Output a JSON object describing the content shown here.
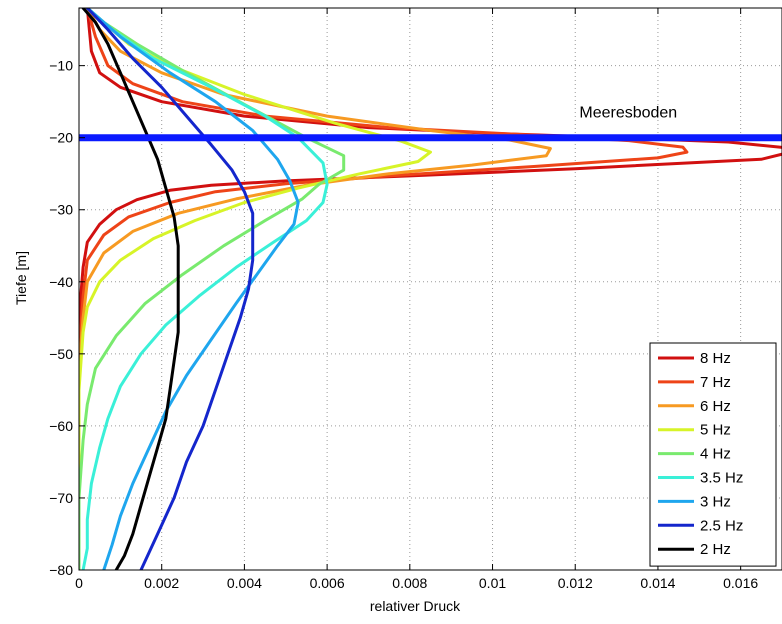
{
  "chart_data": {
    "type": "line",
    "title": "",
    "xlabel": "relativer Druck",
    "ylabel": "Tiefe [m]",
    "xlim": [
      0,
      0.017
    ],
    "ylim": [
      -80,
      -2
    ],
    "grid": true,
    "legend_position": "bottom-right",
    "x_ticks": [
      {
        "value": 0,
        "label": "0"
      },
      {
        "value": 0.002,
        "label": "0.002"
      },
      {
        "value": 0.004,
        "label": "0.004"
      },
      {
        "value": 0.006,
        "label": "0.006"
      },
      {
        "value": 0.008,
        "label": "0.008"
      },
      {
        "value": 0.01,
        "label": "0.01"
      },
      {
        "value": 0.012,
        "label": "0.012"
      },
      {
        "value": 0.014,
        "label": "0.014"
      },
      {
        "value": 0.016,
        "label": "0.016"
      }
    ],
    "y_ticks": [
      {
        "value": -10,
        "label": "−10"
      },
      {
        "value": -20,
        "label": "−20"
      },
      {
        "value": -30,
        "label": "−30"
      },
      {
        "value": -40,
        "label": "−40"
      },
      {
        "value": -50,
        "label": "−50"
      },
      {
        "value": -60,
        "label": "−60"
      },
      {
        "value": -70,
        "label": "−70"
      },
      {
        "value": -80,
        "label": "−80"
      }
    ],
    "annotations": [
      {
        "type": "hline",
        "y": -20,
        "color": "#0a1aff",
        "text": "Meeresboden",
        "text_x": 0.0121,
        "text_y": -17.2
      }
    ],
    "series": [
      {
        "name": "8 Hz",
        "color": "#d11010",
        "points": [
          [
            0.0002,
            -2
          ],
          [
            0.0003,
            -8
          ],
          [
            0.0005,
            -11
          ],
          [
            0.001,
            -13
          ],
          [
            0.002,
            -15
          ],
          [
            0.004,
            -17
          ],
          [
            0.007,
            -18.6
          ],
          [
            0.01,
            -19.4
          ],
          [
            0.013,
            -20
          ],
          [
            0.0157,
            -20.6
          ],
          [
            0.0171,
            -21.4
          ],
          [
            0.0172,
            -22
          ],
          [
            0.0165,
            -23
          ],
          [
            0.012,
            -24.3
          ],
          [
            0.008,
            -25.3
          ],
          [
            0.005,
            -26
          ],
          [
            0.0032,
            -26.6
          ],
          [
            0.0022,
            -27.3
          ],
          [
            0.0014,
            -28.6
          ],
          [
            0.0009,
            -30
          ],
          [
            0.0005,
            -32
          ],
          [
            0.0002,
            -34.5
          ],
          [
            0.0001,
            -38
          ],
          [
            0.0,
            -45
          ],
          [
            0.0,
            -80
          ]
        ]
      },
      {
        "name": "7 Hz",
        "color": "#ee4418",
        "points": [
          [
            0.0002,
            -2
          ],
          [
            0.0004,
            -6
          ],
          [
            0.0007,
            -10
          ],
          [
            0.0013,
            -12.5
          ],
          [
            0.0025,
            -15
          ],
          [
            0.0045,
            -17
          ],
          [
            0.0075,
            -18.6
          ],
          [
            0.0105,
            -19.5
          ],
          [
            0.0133,
            -20.4
          ],
          [
            0.0146,
            -21.3
          ],
          [
            0.0147,
            -22
          ],
          [
            0.014,
            -22.8
          ],
          [
            0.011,
            -24
          ],
          [
            0.0075,
            -25.3
          ],
          [
            0.005,
            -26.4
          ],
          [
            0.0033,
            -27.5
          ],
          [
            0.0022,
            -29
          ],
          [
            0.0012,
            -31
          ],
          [
            0.0006,
            -33.5
          ],
          [
            0.0002,
            -37
          ],
          [
            0.0001,
            -42
          ],
          [
            0.0,
            -50
          ],
          [
            0.0,
            -80
          ]
        ]
      },
      {
        "name": "6 Hz",
        "color": "#f79a22",
        "points": [
          [
            0.0002,
            -2
          ],
          [
            0.0005,
            -5
          ],
          [
            0.001,
            -8
          ],
          [
            0.002,
            -11
          ],
          [
            0.0035,
            -14
          ],
          [
            0.006,
            -17
          ],
          [
            0.0085,
            -19
          ],
          [
            0.0104,
            -20.3
          ],
          [
            0.0114,
            -21.5
          ],
          [
            0.0113,
            -22.5
          ],
          [
            0.0095,
            -23.8
          ],
          [
            0.0075,
            -25
          ],
          [
            0.0055,
            -26.6
          ],
          [
            0.0038,
            -28.5
          ],
          [
            0.0024,
            -30.5
          ],
          [
            0.0013,
            -33
          ],
          [
            0.0006,
            -36
          ],
          [
            0.0002,
            -40
          ],
          [
            0.0001,
            -45
          ],
          [
            0.0,
            -52
          ],
          [
            0.0,
            -80
          ]
        ]
      },
      {
        "name": "5 Hz",
        "color": "#d7f428",
        "points": [
          [
            0.0002,
            -2
          ],
          [
            0.0006,
            -4
          ],
          [
            0.0012,
            -7
          ],
          [
            0.0022,
            -10
          ],
          [
            0.004,
            -14
          ],
          [
            0.0062,
            -18
          ],
          [
            0.0078,
            -20.5
          ],
          [
            0.0085,
            -22
          ],
          [
            0.0082,
            -23.3
          ],
          [
            0.0068,
            -25
          ],
          [
            0.0053,
            -27
          ],
          [
            0.004,
            -29
          ],
          [
            0.0028,
            -31.5
          ],
          [
            0.0018,
            -34
          ],
          [
            0.001,
            -37
          ],
          [
            0.0005,
            -40
          ],
          [
            0.0002,
            -43.5
          ],
          [
            0.0001,
            -47
          ],
          [
            0.0,
            -55
          ],
          [
            0.0,
            -80
          ]
        ]
      },
      {
        "name": "4 Hz",
        "color": "#79ea6e",
        "points": [
          [
            0.0002,
            -2
          ],
          [
            0.0006,
            -4
          ],
          [
            0.0014,
            -7
          ],
          [
            0.0026,
            -11
          ],
          [
            0.0042,
            -16
          ],
          [
            0.0055,
            -20
          ],
          [
            0.0064,
            -22.5
          ],
          [
            0.0064,
            -24.5
          ],
          [
            0.0058,
            -26.5
          ],
          [
            0.0054,
            -28.5
          ],
          [
            0.0045,
            -31.5
          ],
          [
            0.0035,
            -35
          ],
          [
            0.0025,
            -39
          ],
          [
            0.0016,
            -43
          ],
          [
            0.0009,
            -47.5
          ],
          [
            0.0004,
            -52
          ],
          [
            0.0002,
            -57
          ],
          [
            0.0001,
            -62
          ],
          [
            0.0,
            -70
          ],
          [
            0.0,
            -80
          ]
        ]
      },
      {
        "name": "3.5 Hz",
        "color": "#3af0d8",
        "points": [
          [
            0.0002,
            -2
          ],
          [
            0.0008,
            -5
          ],
          [
            0.0018,
            -9
          ],
          [
            0.0032,
            -13
          ],
          [
            0.0045,
            -17
          ],
          [
            0.0053,
            -20
          ],
          [
            0.0059,
            -23.5
          ],
          [
            0.006,
            -26.5
          ],
          [
            0.0059,
            -29
          ],
          [
            0.0055,
            -31.5
          ],
          [
            0.0047,
            -34.5
          ],
          [
            0.0038,
            -38
          ],
          [
            0.0029,
            -42
          ],
          [
            0.0021,
            -46
          ],
          [
            0.0015,
            -50
          ],
          [
            0.001,
            -54.5
          ],
          [
            0.0007,
            -59
          ],
          [
            0.0005,
            -63
          ],
          [
            0.0003,
            -68
          ],
          [
            0.0002,
            -73
          ],
          [
            0.0002,
            -77
          ],
          [
            0.0001,
            -80
          ]
        ]
      },
      {
        "name": "3 Hz",
        "color": "#1ea6ee",
        "points": [
          [
            0.0002,
            -2
          ],
          [
            0.001,
            -6
          ],
          [
            0.0022,
            -11
          ],
          [
            0.0033,
            -15
          ],
          [
            0.0042,
            -19
          ],
          [
            0.0048,
            -23
          ],
          [
            0.0051,
            -26
          ],
          [
            0.0053,
            -29
          ],
          [
            0.0052,
            -32
          ],
          [
            0.0048,
            -35
          ],
          [
            0.0043,
            -39
          ],
          [
            0.0038,
            -43
          ],
          [
            0.0032,
            -48
          ],
          [
            0.0026,
            -53
          ],
          [
            0.0021,
            -58
          ],
          [
            0.0017,
            -63
          ],
          [
            0.0013,
            -68
          ],
          [
            0.001,
            -72.5
          ],
          [
            0.0008,
            -76.5
          ],
          [
            0.0006,
            -80
          ]
        ]
      },
      {
        "name": "2.5 Hz",
        "color": "#1426cc",
        "points": [
          [
            0.0002,
            -2
          ],
          [
            0.0007,
            -5
          ],
          [
            0.0013,
            -9
          ],
          [
            0.002,
            -13
          ],
          [
            0.0026,
            -17
          ],
          [
            0.0032,
            -21
          ],
          [
            0.0037,
            -24.5
          ],
          [
            0.004,
            -27.5
          ],
          [
            0.0042,
            -30.5
          ],
          [
            0.0042,
            -33.5
          ],
          [
            0.0042,
            -37
          ],
          [
            0.0041,
            -41
          ],
          [
            0.0039,
            -45
          ],
          [
            0.0036,
            -50
          ],
          [
            0.0033,
            -55
          ],
          [
            0.003,
            -60
          ],
          [
            0.0026,
            -65
          ],
          [
            0.0023,
            -70
          ],
          [
            0.0019,
            -75
          ],
          [
            0.0015,
            -80
          ]
        ]
      },
      {
        "name": "2 Hz",
        "color": "#000000",
        "points": [
          [
            0.0001,
            -2
          ],
          [
            0.0004,
            -4
          ],
          [
            0.0007,
            -7
          ],
          [
            0.001,
            -11
          ],
          [
            0.0013,
            -15
          ],
          [
            0.0016,
            -19
          ],
          [
            0.0019,
            -23
          ],
          [
            0.0021,
            -27
          ],
          [
            0.0023,
            -31
          ],
          [
            0.0024,
            -35
          ],
          [
            0.0024,
            -39
          ],
          [
            0.0024,
            -43
          ],
          [
            0.0024,
            -47
          ],
          [
            0.0023,
            -51
          ],
          [
            0.0022,
            -55
          ],
          [
            0.0021,
            -59
          ],
          [
            0.0019,
            -63
          ],
          [
            0.0017,
            -67
          ],
          [
            0.0015,
            -71
          ],
          [
            0.0013,
            -75
          ],
          [
            0.0011,
            -78
          ],
          [
            0.0009,
            -80
          ]
        ]
      }
    ]
  }
}
